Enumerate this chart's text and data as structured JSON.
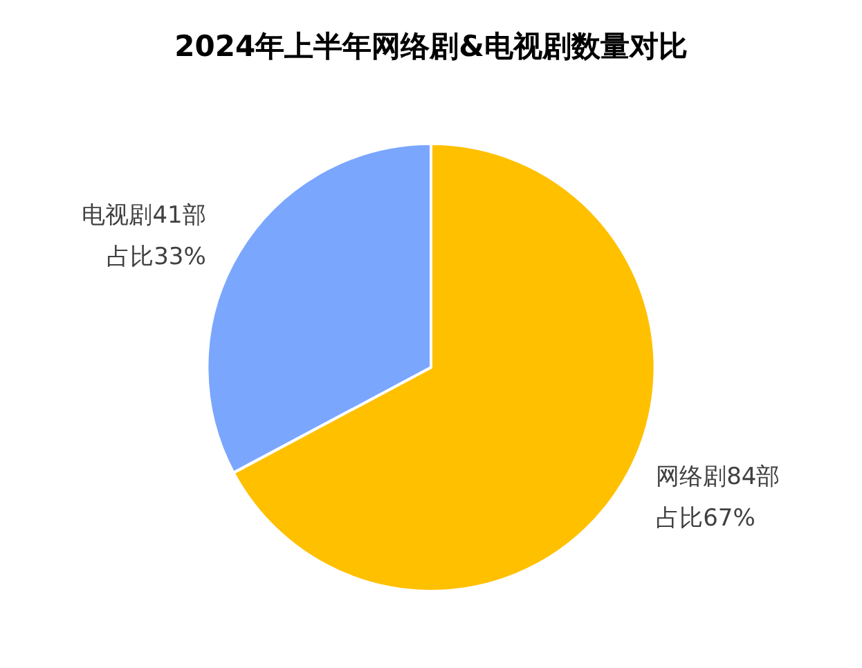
{
  "chart_data": {
    "type": "pie",
    "title": "2024年上半年网络剧&电视剧数量对比",
    "categories": [
      "网络剧",
      "电视剧"
    ],
    "values": [
      84,
      41
    ],
    "colors": [
      "#ffc000",
      "#7aa6fe"
    ],
    "value_labels": [
      "84部占比67%",
      "41部占比33%"
    ],
    "legend": false
  }
}
